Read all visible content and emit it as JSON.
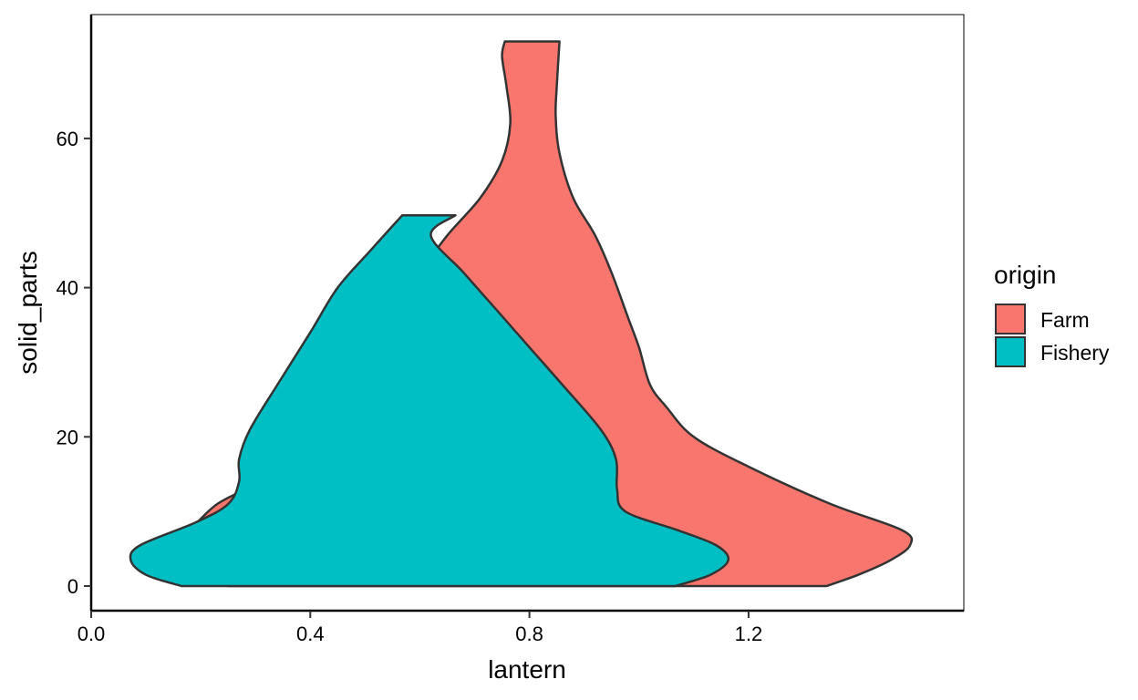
{
  "chart_data": {
    "type": "violin",
    "xlabel": "lantern",
    "ylabel": "solid_parts",
    "xlim": [
      0.0,
      1.593
    ],
    "ylim": [
      -3.3,
      76.6
    ],
    "x_ticks": [
      0.0,
      0.4,
      0.8,
      1.2
    ],
    "x_tick_labels": [
      "0.0",
      "0.4",
      "0.8",
      "1.2"
    ],
    "y_ticks": [
      0,
      20,
      40,
      60
    ],
    "y_tick_labels": [
      "0",
      "20",
      "40",
      "60"
    ],
    "grid": false,
    "legend": {
      "title": "origin",
      "position": "right"
    },
    "series": [
      {
        "name": "Farm",
        "color": "#F8766D",
        "y_min": 0,
        "y_max": 73,
        "left_edge": [
          [
            0.65,
            47
          ],
          [
            0.71,
            52
          ],
          [
            0.75,
            57
          ],
          [
            0.765,
            62
          ],
          [
            0.758,
            67
          ],
          [
            0.75,
            71
          ],
          [
            0.755,
            73
          ],
          [
            0.35,
            17
          ],
          [
            0.23,
            11
          ],
          [
            0.17,
            7
          ],
          [
            0.115,
            5.5
          ]
        ],
        "right_edge": [
          [
            1.342,
            0
          ],
          [
            1.4,
            1.5
          ],
          [
            1.46,
            3.5
          ],
          [
            1.495,
            5.5
          ],
          [
            1.48,
            7.5
          ],
          [
            1.35,
            11
          ],
          [
            1.2,
            16
          ],
          [
            1.1,
            20
          ],
          [
            1.05,
            24
          ],
          [
            1.02,
            27
          ],
          [
            1.0,
            32
          ],
          [
            0.98,
            36
          ],
          [
            0.95,
            42
          ],
          [
            0.92,
            47
          ],
          [
            0.88,
            52
          ],
          [
            0.855,
            58
          ],
          [
            0.848,
            63
          ],
          [
            0.85,
            67
          ],
          [
            0.855,
            73
          ]
        ],
        "bottom": [
          [
            0.83,
            0
          ],
          [
            1.342,
            0
          ]
        ]
      },
      {
        "name": "Fishery",
        "color": "#00BFC4",
        "y_min": 0,
        "y_max": 49.7,
        "left_edge": [
          [
            0.165,
            0
          ],
          [
            0.1,
            1.5
          ],
          [
            0.072,
            3.5
          ],
          [
            0.09,
            5.5
          ],
          [
            0.19,
            8.5
          ],
          [
            0.25,
            11
          ],
          [
            0.27,
            14
          ],
          [
            0.27,
            17
          ],
          [
            0.29,
            21
          ],
          [
            0.34,
            27
          ],
          [
            0.4,
            34
          ],
          [
            0.45,
            40
          ],
          [
            0.51,
            45
          ],
          [
            0.568,
            49.7
          ]
        ],
        "right_edge": [
          [
            1.066,
            0
          ],
          [
            1.13,
            1.5
          ],
          [
            1.163,
            3.5
          ],
          [
            1.14,
            5.5
          ],
          [
            1.07,
            7.5
          ],
          [
            0.975,
            10
          ],
          [
            0.96,
            13
          ],
          [
            0.958,
            17
          ],
          [
            0.93,
            21
          ],
          [
            0.86,
            27
          ],
          [
            0.8,
            32
          ],
          [
            0.74,
            37
          ],
          [
            0.68,
            42
          ],
          [
            0.62,
            47
          ],
          [
            0.665,
            49.7
          ]
        ]
      }
    ]
  }
}
